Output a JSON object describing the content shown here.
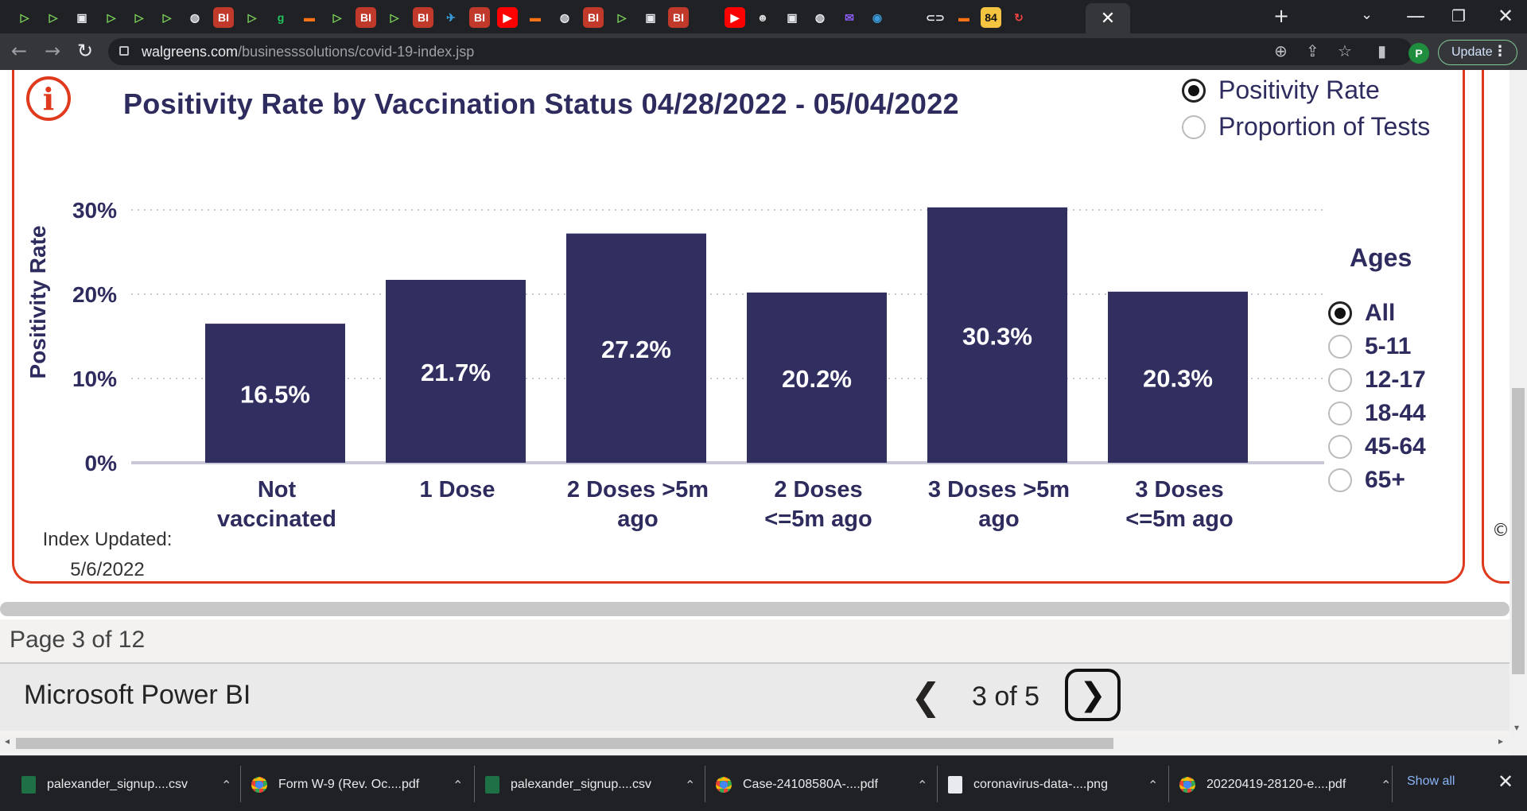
{
  "browser": {
    "tab_favicons": [
      {
        "icon": "play-icon",
        "glyph": "▷",
        "color": "#7cd35b"
      },
      {
        "icon": "play-icon",
        "glyph": "▷",
        "color": "#7cd35b"
      },
      {
        "icon": "folder-icon",
        "glyph": "▣",
        "color": "#e8eaed"
      },
      {
        "icon": "play-icon",
        "glyph": "▷",
        "color": "#7cd35b"
      },
      {
        "icon": "play-icon",
        "glyph": "▷",
        "color": "#7cd35b"
      },
      {
        "icon": "play-icon",
        "glyph": "▷",
        "color": "#7cd35b"
      },
      {
        "icon": "globe-icon",
        "glyph": "◍",
        "color": "#e8eaed"
      },
      {
        "icon": "bi-logo-icon",
        "glyph": "BI",
        "color": "#ffffff",
        "bg": "#c0392b"
      },
      {
        "icon": "play-icon",
        "glyph": "▷",
        "color": "#7cd35b"
      },
      {
        "icon": "g-logo-icon",
        "glyph": "g",
        "color": "#22c55e"
      },
      {
        "icon": "bookmark-ribbon-icon",
        "glyph": "▬",
        "color": "#f97316"
      },
      {
        "icon": "play-icon",
        "glyph": "▷",
        "color": "#7cd35b"
      },
      {
        "icon": "bi-logo-icon",
        "glyph": "BI",
        "color": "#ffffff",
        "bg": "#c0392b"
      },
      {
        "icon": "play-icon",
        "glyph": "▷",
        "color": "#7cd35b"
      },
      {
        "icon": "bi-logo-icon",
        "glyph": "BI",
        "color": "#ffffff",
        "bg": "#c0392b"
      },
      {
        "icon": "bird-icon",
        "glyph": "✈",
        "color": "#3b9ad9"
      },
      {
        "icon": "bi-logo-icon",
        "glyph": "BI",
        "color": "#ffffff",
        "bg": "#c0392b"
      },
      {
        "icon": "youtube-icon",
        "glyph": "▶",
        "color": "#ffffff",
        "bg": "#ff0000"
      },
      {
        "icon": "bookmark-ribbon-icon",
        "glyph": "▬",
        "color": "#f97316"
      },
      {
        "icon": "globe-icon",
        "glyph": "◍",
        "color": "#e8eaed"
      },
      {
        "icon": "bi-logo-icon",
        "glyph": "BI",
        "color": "#ffffff",
        "bg": "#c0392b"
      },
      {
        "icon": "play-icon",
        "glyph": "▷",
        "color": "#7cd35b"
      },
      {
        "icon": "folder-icon",
        "glyph": "▣",
        "color": "#e8eaed"
      },
      {
        "icon": "bi-logo-icon",
        "glyph": "BI",
        "color": "#ffffff",
        "bg": "#c0392b"
      },
      {
        "icon": "youtube-icon",
        "glyph": "▶",
        "color": "#ffffff",
        "bg": "#ff0000"
      },
      {
        "icon": "portrait-icon",
        "glyph": "☻",
        "color": "#d6d6d6"
      },
      {
        "icon": "folder-icon",
        "glyph": "▣",
        "color": "#e8eaed"
      },
      {
        "icon": "globe-icon",
        "glyph": "◍",
        "color": "#e8eaed"
      },
      {
        "icon": "mail-icon",
        "glyph": "✉",
        "color": "#8b5cf6"
      },
      {
        "icon": "earth-icon",
        "glyph": "◉",
        "color": "#3b9ad9"
      },
      {
        "icon": "link-icon",
        "glyph": "⊂⊃",
        "color": "#e8eaed"
      },
      {
        "icon": "bookmark-ribbon-icon",
        "glyph": "▬",
        "color": "#f97316"
      },
      {
        "icon": "badge-84-icon",
        "glyph": "84",
        "color": "#111111",
        "bg": "#f5c542"
      },
      {
        "icon": "refresh-red-icon",
        "glyph": "↻",
        "color": "#ef4444"
      }
    ],
    "active_tab_close": "✕",
    "new_tab": "+",
    "tab_search": "⌄",
    "minimize": "—",
    "restore": "❐",
    "close": "✕",
    "back": "←",
    "forward": "→",
    "reload": "↻",
    "url_host": "walgreens.com",
    "url_path": "/businesssolutions/covid-19-index.jsp",
    "zoom_icon": "⊕",
    "share_icon": "⇪",
    "star_icon": "☆",
    "side_panel_icon": "▮",
    "profile_initial": "P",
    "update_label": "Update",
    "menu_dots": "⋮"
  },
  "report": {
    "info_glyph": "i",
    "metric_options": [
      {
        "label": "Positivity Rate",
        "selected": true
      },
      {
        "label": "Proportion of Tests",
        "selected": false
      }
    ],
    "ages_title": "Ages",
    "ages_options": [
      {
        "label": "All",
        "selected": true
      },
      {
        "label": "5-11",
        "selected": false
      },
      {
        "label": "12-17",
        "selected": false
      },
      {
        "label": "18-44",
        "selected": false
      },
      {
        "label": "45-64",
        "selected": false
      },
      {
        "label": "65+",
        "selected": false
      }
    ],
    "index_updated_label": "Index Updated:",
    "index_updated_date": "5/6/2022",
    "copyright": "©",
    "bar_color": "#312f60",
    "title_color": "#2e2c5e",
    "border_color": "#e03a1e"
  },
  "chart_data": {
    "type": "bar",
    "title": "Positivity Rate by Vaccination Status 04/28/2022 - 05/04/2022",
    "ylabel": "Positivity Rate",
    "xlabel": "",
    "categories": [
      [
        "Not",
        "vaccinated"
      ],
      [
        "1 Dose"
      ],
      [
        "2 Doses >5m",
        "ago"
      ],
      [
        "2 Doses",
        "<=5m ago"
      ],
      [
        "3 Doses >5m",
        "ago"
      ],
      [
        "3 Doses",
        "<=5m ago"
      ]
    ],
    "values": [
      16.5,
      21.7,
      27.2,
      20.2,
      30.3,
      20.3
    ],
    "data_labels": [
      "16.5%",
      "21.7%",
      "27.2%",
      "20.2%",
      "30.3%",
      "20.3%"
    ],
    "yticks": [
      0,
      10,
      20,
      30
    ],
    "ytick_labels": [
      "0%",
      "10%",
      "20%",
      "30%"
    ],
    "ylim": [
      0,
      30
    ],
    "grid": true
  },
  "footer": {
    "page_indicator": "Page 3 of 12",
    "brand": "Microsoft Power BI",
    "prev_glyph": "❮",
    "page_counter": "3 of 5",
    "next_glyph": "❯",
    "scroll_left": "◂",
    "scroll_right": "▸",
    "scroll_down": "▾"
  },
  "downloads": {
    "items": [
      {
        "name": "palexander_signup....csv",
        "icon": "csv-file-icon",
        "kind": "csv"
      },
      {
        "name": "Form W-9 (Rev. Oc....pdf",
        "icon": "chrome-icon",
        "kind": "chrome"
      },
      {
        "name": "palexander_signup....csv",
        "icon": "csv-file-icon",
        "kind": "csv"
      },
      {
        "name": "Case-24108580A-....pdf",
        "icon": "chrome-icon",
        "kind": "chrome"
      },
      {
        "name": "coronavirus-data-....png",
        "icon": "image-file-icon",
        "kind": "png"
      },
      {
        "name": "20220419-28120-e....pdf",
        "icon": "chrome-icon",
        "kind": "chrome"
      }
    ],
    "caret": "⌃",
    "show_all": "Show all",
    "close": "✕"
  }
}
